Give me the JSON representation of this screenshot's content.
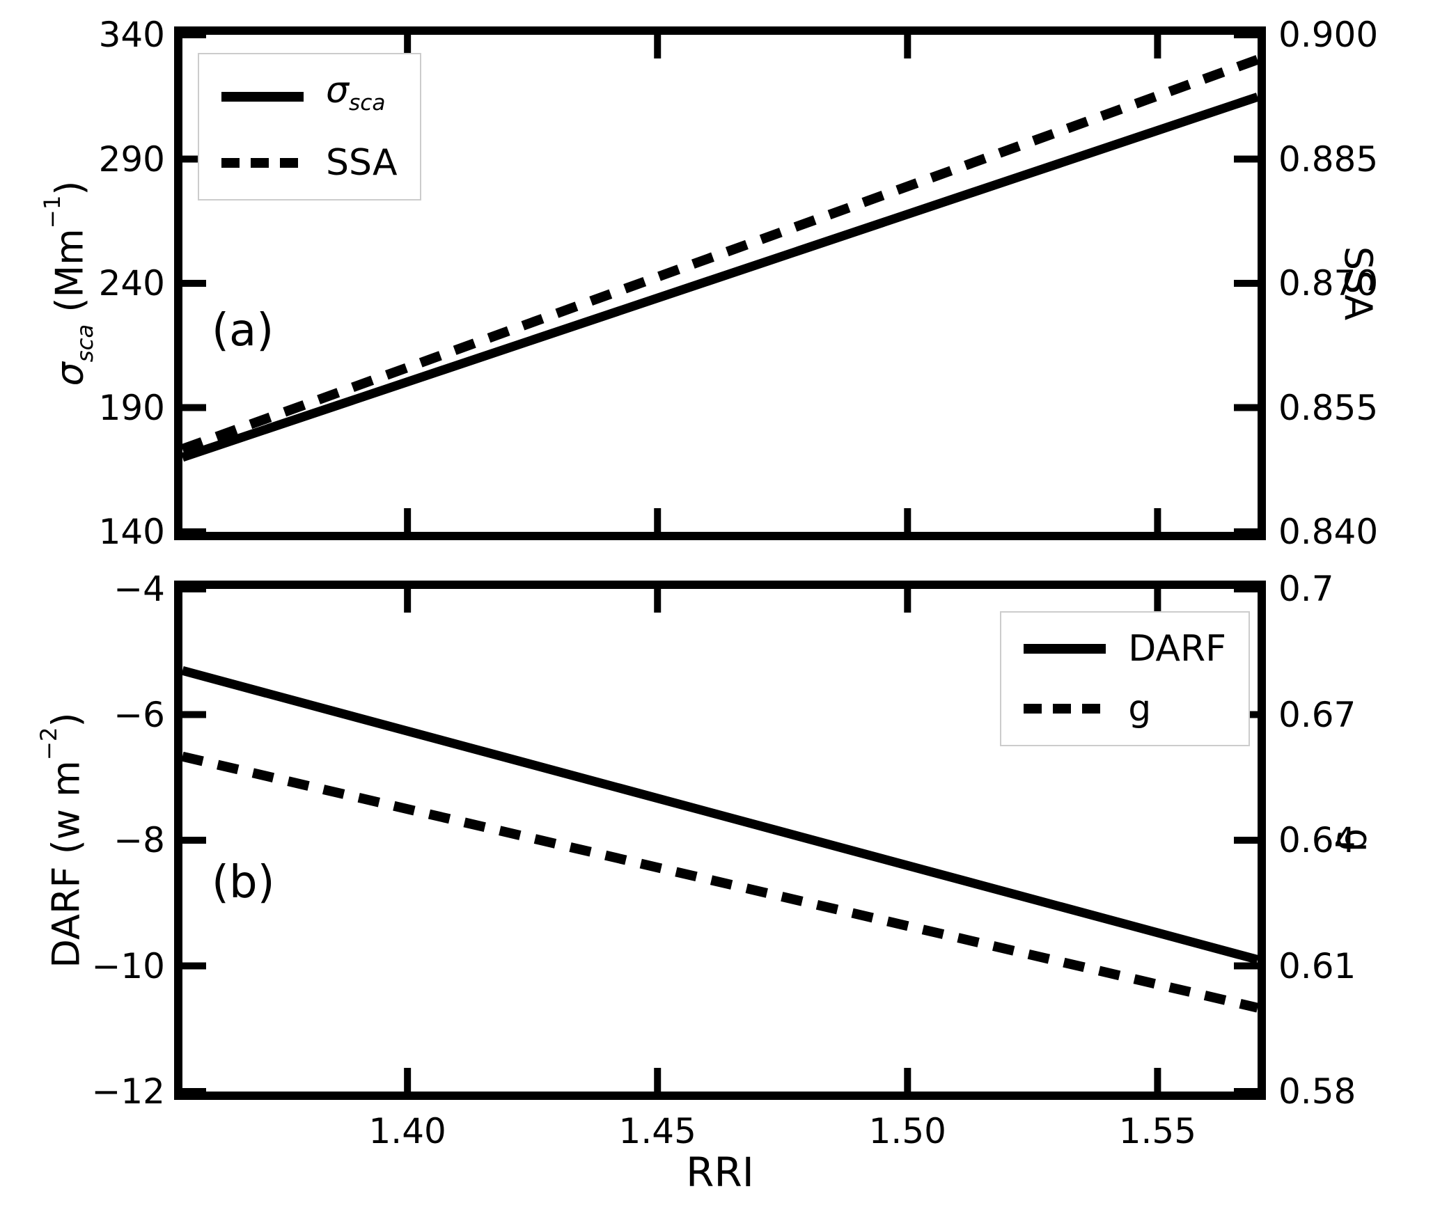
{
  "figure": {
    "background": "#ffffff",
    "ink": "#000000"
  },
  "xaxis_label": "RRI",
  "panel_a": {
    "annotation": "(a)",
    "ylabel_left_sigma": "σ",
    "ylabel_left_sub": "sca",
    "ylabel_left_unit_open": " (Mm",
    "ylabel_left_unit_sup": "−1",
    "ylabel_left_unit_close": ")",
    "ylabel_right": "SSA",
    "legend": {
      "item1_symbol": "σ",
      "item1_sub": "sca",
      "item2_label": "SSA"
    }
  },
  "panel_b": {
    "annotation": "(b)",
    "ylabel_left_pre": "DARF (w m",
    "ylabel_left_sup": "−2",
    "ylabel_left_post": ")",
    "ylabel_right": "g",
    "legend": {
      "item1_label": "DARF",
      "item2_label": "g"
    }
  },
  "chart_data": [
    {
      "panel": "a",
      "type": "line",
      "title": "",
      "xlabel": "RRI",
      "ylabel_left": "σ_sca (Mm⁻¹)",
      "ylabel_right": "SSA",
      "annotation": "(a)",
      "grid": false,
      "legend_position": "top-left",
      "xlim": [
        1.355,
        1.57
      ],
      "ylim_left": [
        140,
        340
      ],
      "ylim_right": [
        0.84,
        0.9
      ],
      "show_x_tick_labels": false,
      "xticks": {
        "values": [
          1.4,
          1.45,
          1.5,
          1.55
        ],
        "labels": [
          "1.40",
          "1.45",
          "1.50",
          "1.55"
        ]
      },
      "yticks_left": {
        "values": [
          140,
          190,
          240,
          290,
          340
        ],
        "labels": [
          "140",
          "190",
          "240",
          "290",
          "340"
        ]
      },
      "yticks_right": {
        "values": [
          0.84,
          0.855,
          0.87,
          0.885,
          0.9
        ],
        "labels": [
          "0.840",
          "0.855",
          "0.870",
          "0.885",
          "0.900"
        ]
      },
      "series": [
        {
          "id": "sigma-sca",
          "name": "σ_sca",
          "axis": "left",
          "style": "solid",
          "x": [
            1.355,
            1.57
          ],
          "values": [
            170,
            315
          ]
        },
        {
          "id": "ssa",
          "name": "SSA",
          "axis": "right",
          "style": "dashed",
          "x": [
            1.355,
            1.57
          ],
          "values": [
            0.85,
            0.897
          ]
        }
      ]
    },
    {
      "panel": "b",
      "type": "line",
      "title": "",
      "xlabel": "RRI",
      "ylabel_left": "DARF (w m⁻²)",
      "ylabel_right": "g",
      "annotation": "(b)",
      "grid": false,
      "legend_position": "top-right",
      "xlim": [
        1.355,
        1.57
      ],
      "ylim_left": [
        -12,
        -4
      ],
      "ylim_right": [
        0.58,
        0.7
      ],
      "show_x_tick_labels": true,
      "xticks": {
        "values": [
          1.4,
          1.45,
          1.5,
          1.55
        ],
        "labels": [
          "1.40",
          "1.45",
          "1.50",
          "1.55"
        ]
      },
      "yticks_left": {
        "values": [
          -12,
          -10,
          -8,
          -6,
          -4
        ],
        "labels": [
          "−12",
          "−10",
          "−8",
          "−6",
          "−4"
        ]
      },
      "yticks_right": {
        "values": [
          0.58,
          0.61,
          0.64,
          0.67,
          0.7
        ],
        "labels": [
          "0.58",
          "0.61",
          "0.64",
          "0.67",
          "0.7"
        ]
      },
      "series": [
        {
          "id": "darf",
          "name": "DARF",
          "axis": "left",
          "style": "solid",
          "x": [
            1.355,
            1.57
          ],
          "values": [
            -5.3,
            -9.9
          ]
        },
        {
          "id": "g",
          "name": "g",
          "axis": "right",
          "style": "dashed",
          "x": [
            1.355,
            1.57
          ],
          "values": [
            0.66,
            0.6
          ]
        }
      ]
    }
  ]
}
